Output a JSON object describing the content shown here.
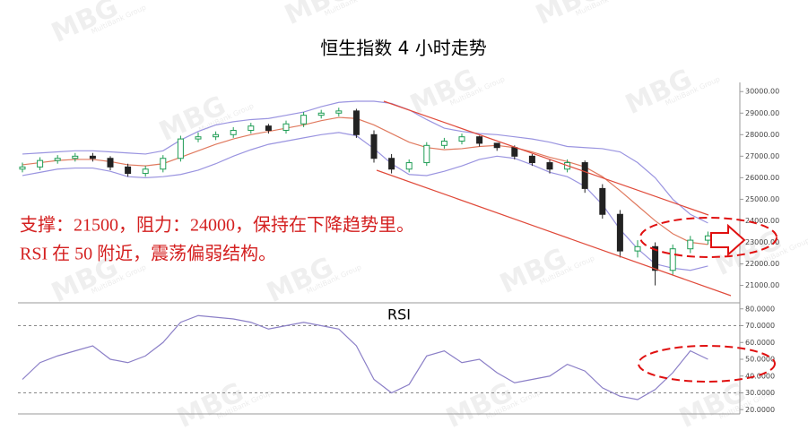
{
  "watermark": [
    "MBG",
    "MultiBank Group"
  ],
  "chart_data": [
    {
      "type": "candlestick",
      "title": "恒生指数   4 小时走势",
      "annotations": [
        "支撑：21500，阻力：24000，保持在下降趋势里。",
        "RSI 在 50 附近，震荡偏弱结构。"
      ],
      "open": [
        26400,
        26500,
        26800,
        26900,
        27000,
        26900,
        26500,
        26200,
        26400,
        26900,
        27800,
        27900,
        28000,
        28200,
        28400,
        28200,
        28500,
        28900,
        29000,
        29100,
        28000,
        26900,
        26400,
        26700,
        27500,
        27700,
        27900,
        27600,
        27400,
        27000,
        26700,
        26400,
        26700,
        25500,
        24300,
        22600,
        22800,
        21700,
        22700,
        23100
      ],
      "close": [
        26500,
        26800,
        26900,
        27000,
        26900,
        26500,
        26200,
        26400,
        26900,
        27800,
        27900,
        28000,
        28200,
        28400,
        28200,
        28500,
        28900,
        29000,
        29100,
        28000,
        26900,
        26400,
        26700,
        27500,
        27700,
        27900,
        27600,
        27400,
        27000,
        26700,
        26400,
        26700,
        25500,
        24300,
        22600,
        22800,
        21700,
        22700,
        23100,
        23300
      ],
      "high": [
        26700,
        26950,
        27050,
        27150,
        27150,
        27000,
        26650,
        26550,
        27050,
        27950,
        28100,
        28150,
        28350,
        28550,
        28500,
        28650,
        29050,
        29150,
        29250,
        29200,
        28200,
        27100,
        26850,
        27650,
        27850,
        28050,
        27950,
        27600,
        27500,
        27100,
        26850,
        26850,
        26800,
        25700,
        24500,
        23100,
        23000,
        22900,
        23300,
        23500
      ],
      "low": [
        26250,
        26350,
        26650,
        26750,
        26750,
        26350,
        26050,
        26050,
        26250,
        26750,
        27650,
        27750,
        27850,
        28050,
        28050,
        28050,
        28350,
        28750,
        28850,
        27850,
        26700,
        26200,
        26250,
        26550,
        27350,
        27550,
        27450,
        27250,
        26850,
        26550,
        26200,
        26250,
        25300,
        24100,
        22300,
        22300,
        21000,
        21500,
        22500,
        22900
      ],
      "bands": {
        "upper": [
          27100,
          27150,
          27200,
          27250,
          27250,
          27200,
          27150,
          27100,
          27250,
          27750,
          28150,
          28450,
          28600,
          28700,
          28750,
          28900,
          29050,
          29300,
          29500,
          29550,
          29550,
          29450,
          29150,
          28700,
          28300,
          28150,
          28050,
          28000,
          27900,
          27800,
          27650,
          27450,
          27400,
          27350,
          27200,
          26700,
          26000,
          25000,
          24300,
          23900
        ],
        "middle": [
          26600,
          26700,
          26800,
          26850,
          26850,
          26750,
          26600,
          26550,
          26650,
          26950,
          27250,
          27550,
          27800,
          28000,
          28150,
          28300,
          28450,
          28650,
          28800,
          28750,
          28450,
          28050,
          27650,
          27400,
          27300,
          27350,
          27450,
          27500,
          27400,
          27200,
          26950,
          26750,
          26500,
          26050,
          25400,
          24700,
          24000,
          23400,
          23000,
          22900
        ],
        "lower": [
          26100,
          26250,
          26400,
          26450,
          26450,
          26300,
          26050,
          26000,
          26050,
          26150,
          26350,
          26650,
          27000,
          27300,
          27550,
          27700,
          27850,
          28000,
          28100,
          27950,
          27350,
          26650,
          26150,
          26100,
          26300,
          26550,
          26850,
          27000,
          26900,
          26600,
          26250,
          26050,
          25600,
          24750,
          23600,
          22700,
          22000,
          21800,
          21700,
          21900
        ]
      },
      "band_color": "#9a94e0",
      "middle_color": "#e07a5f",
      "up_color": "#1f9d55",
      "down_color": "#222222",
      "ylim": [
        20400,
        30300
      ],
      "yticks": [
        {
          "value": 21000,
          "label": "21000.00"
        },
        {
          "value": 22000,
          "label": "22000.00"
        },
        {
          "value": 23000,
          "label": "23000.00"
        },
        {
          "value": 24000,
          "label": "24000.00"
        },
        {
          "value": 25000,
          "label": "25000.00"
        },
        {
          "value": 26000,
          "label": "26000.00"
        },
        {
          "value": 27000,
          "label": "27000.00"
        },
        {
          "value": 28000,
          "label": "28000.00"
        },
        {
          "value": 29000,
          "label": "29000.00"
        },
        {
          "value": 30000,
          "label": "30000.00"
        }
      ]
    },
    {
      "type": "line",
      "title": "RSI",
      "color": "#8b7fc7",
      "values": [
        38,
        48,
        52,
        55,
        58,
        50,
        48,
        52,
        60,
        72,
        76,
        75,
        74,
        72,
        68,
        70,
        72,
        70,
        68,
        58,
        38,
        30,
        35,
        52,
        55,
        48,
        50,
        42,
        36,
        38,
        40,
        47,
        43,
        33,
        28,
        26,
        32,
        42,
        55,
        50
      ],
      "levels": [
        30,
        70
      ],
      "ylim": [
        18,
        82
      ],
      "yticks": [
        {
          "value": 20,
          "label": "20.0000"
        },
        {
          "value": 30,
          "label": "30.0000"
        },
        {
          "value": 40,
          "label": "40.0000"
        },
        {
          "value": 50,
          "label": "50.0000"
        },
        {
          "value": 60,
          "label": "60.0000"
        },
        {
          "value": 70,
          "label": "70.0000"
        },
        {
          "value": 80,
          "label": "80.0000"
        }
      ]
    }
  ]
}
